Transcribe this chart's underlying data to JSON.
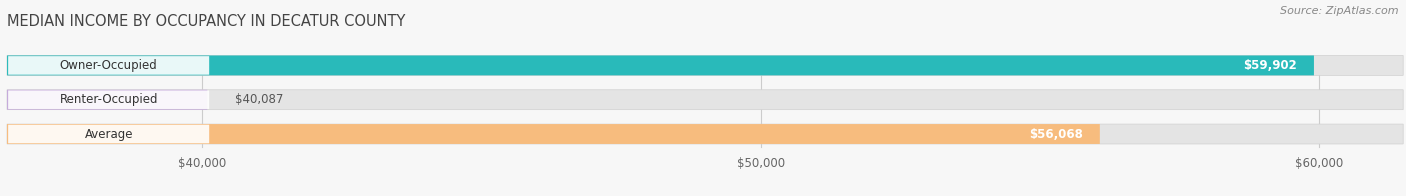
{
  "title": "MEDIAN INCOME BY OCCUPANCY IN DECATUR COUNTY",
  "source": "Source: ZipAtlas.com",
  "categories": [
    "Owner-Occupied",
    "Renter-Occupied",
    "Average"
  ],
  "values": [
    59902,
    40087,
    56068
  ],
  "bar_colors": [
    "#29BABA",
    "#C5AADB",
    "#F7BC7E"
  ],
  "value_labels": [
    "$59,902",
    "$40,087",
    "$56,068"
  ],
  "x_ticks": [
    40000,
    50000,
    60000
  ],
  "x_tick_labels": [
    "$40,000",
    "$50,000",
    "$60,000"
  ],
  "xlim_min": 36500,
  "xlim_max": 61500,
  "data_min": 36500,
  "background_color": "#f7f7f7",
  "bar_bg_color": "#e4e4e4",
  "title_fontsize": 10.5,
  "label_fontsize": 8.5,
  "tick_fontsize": 8.5,
  "source_fontsize": 8
}
